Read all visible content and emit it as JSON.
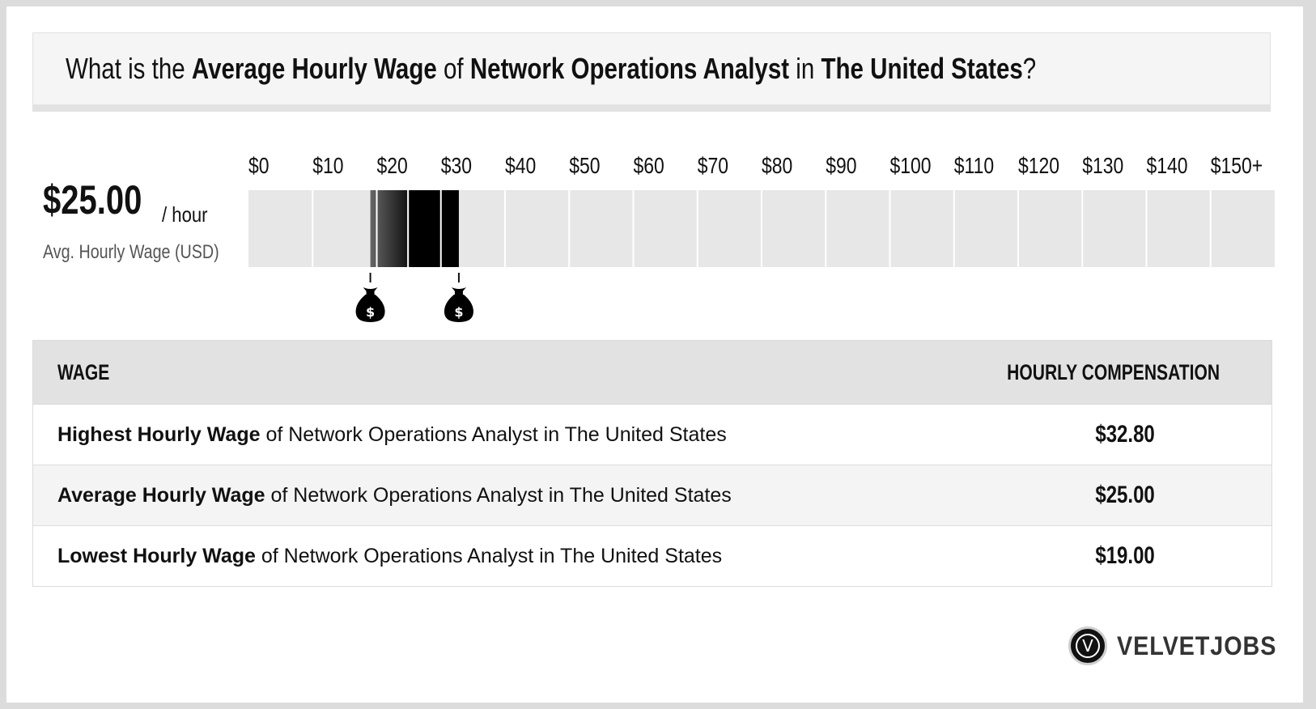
{
  "question": {
    "part1": "What is the ",
    "metric": "Average Hourly Wage",
    "part2": " of ",
    "job": "Network Operations Analyst",
    "part3": " in ",
    "location": "The United States",
    "part4": "?"
  },
  "average": {
    "value": "$25.00",
    "unit": "/ hour",
    "caption": "Avg. Hourly Wage (USD)"
  },
  "chart_data": {
    "type": "range-bar",
    "title": "",
    "x_ticks": [
      "$0",
      "$10",
      "$20",
      "$30",
      "$40",
      "$50",
      "$60",
      "$70",
      "$80",
      "$90",
      "$100",
      "$110",
      "$120",
      "$130",
      "$140",
      "$150+"
    ],
    "xlim": [
      0,
      160
    ],
    "range": {
      "low": 19.0,
      "average": 25.0,
      "high": 32.8
    },
    "markers": [
      {
        "name": "lowest",
        "value": 19.0,
        "icon": "money-bag-icon"
      },
      {
        "name": "highest",
        "value": 32.8,
        "icon": "money-bag-icon"
      }
    ],
    "colors": {
      "track": "#e7e7e7",
      "divider": "#ffffff",
      "low_fill": "#555555",
      "high_fill": "#000000"
    }
  },
  "table": {
    "headers": {
      "wage": "WAGE",
      "comp": "HOURLY COMPENSATION"
    },
    "rows": [
      {
        "bold": "Highest Hourly Wage",
        "rest": " of Network Operations Analyst in The United States",
        "value": "$32.80"
      },
      {
        "bold": "Average Hourly Wage",
        "rest": " of Network Operations Analyst in The United States",
        "value": "$25.00"
      },
      {
        "bold": "Lowest Hourly Wage",
        "rest": " of Network Operations Analyst in The United States",
        "value": "$19.00"
      }
    ]
  },
  "logo": {
    "letter": "V",
    "text": "VELVETJOBS"
  }
}
